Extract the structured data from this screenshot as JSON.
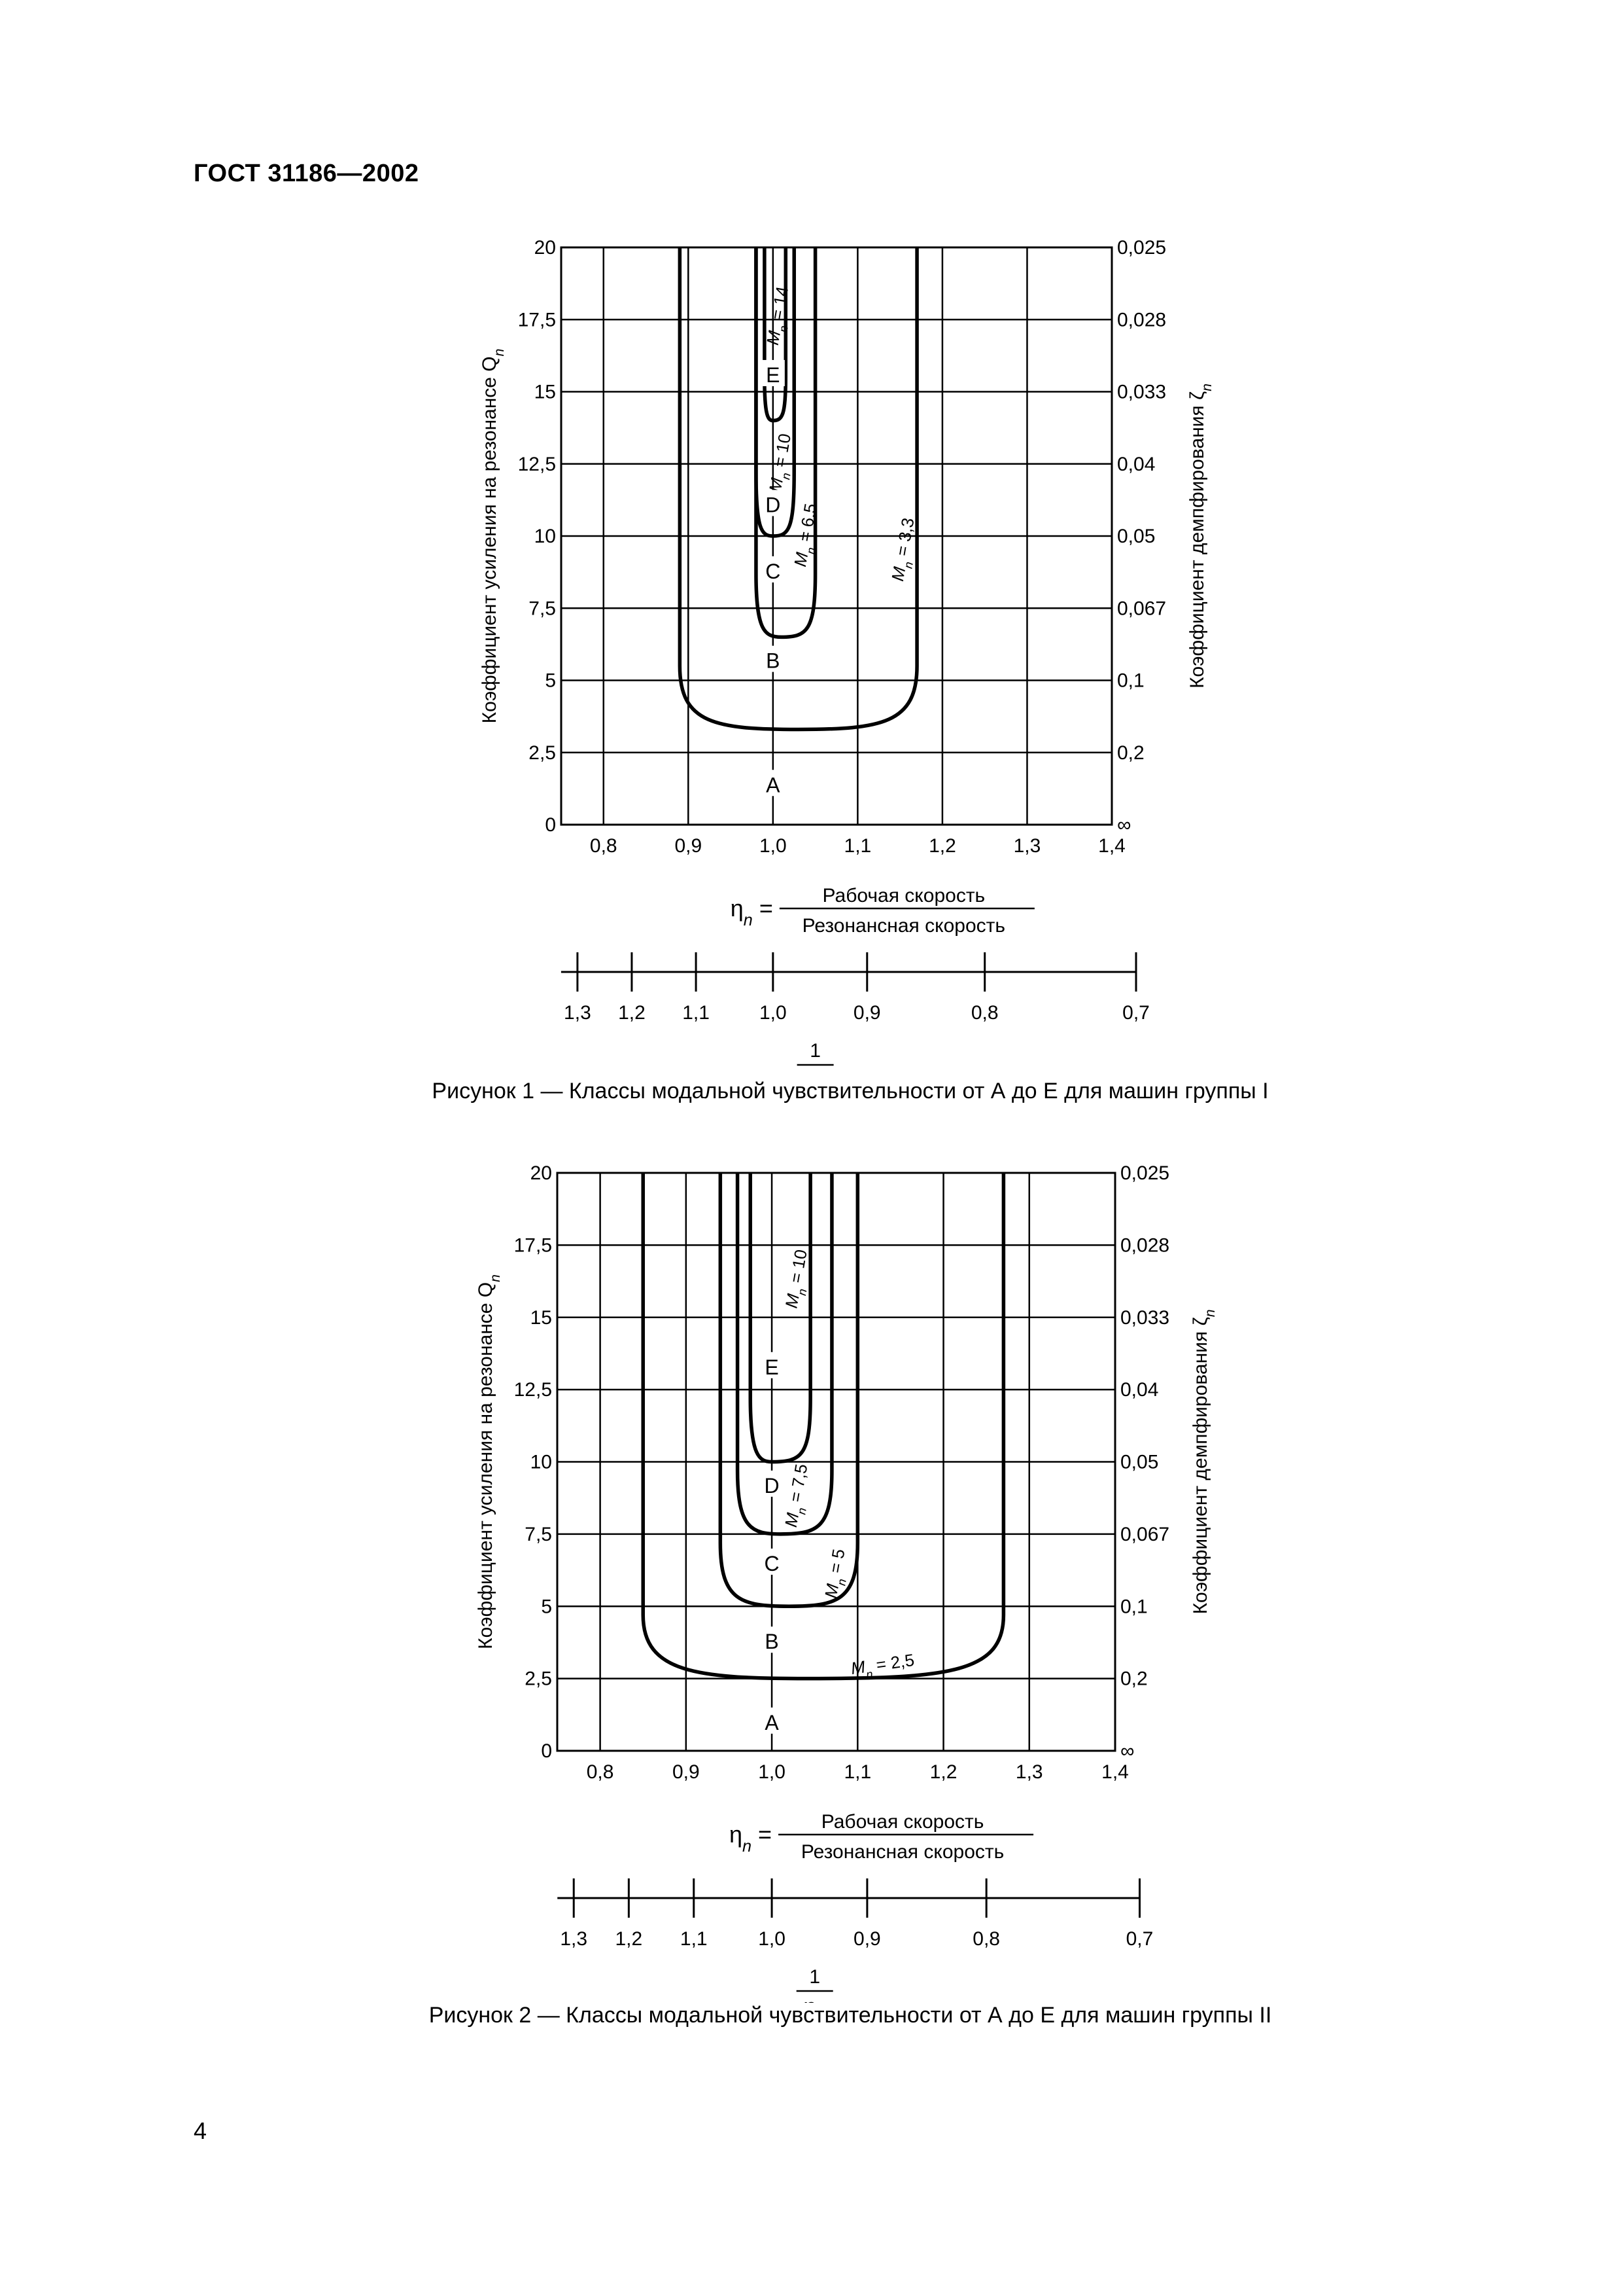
{
  "page": {
    "header": "ГОСТ 31186—2002",
    "page_number": "4"
  },
  "chart_data": [
    {
      "type": "line",
      "caption": "Рисунок 1 — Классы модальной чувствительности от А до Е для машин группы I",
      "ylabel": "Коэффициент усиления на резонансе Q",
      "ylabel_sub": "n",
      "y2label": "Коэффициент демпфирования ζ",
      "y2label_sub": "n",
      "xlim": [
        0.75,
        1.4
      ],
      "ylim": [
        0,
        20
      ],
      "grid": true,
      "x_ticks": [
        0.8,
        0.9,
        1.0,
        1.1,
        1.2,
        1.3,
        1.4
      ],
      "x_tick_labels": [
        "0,8",
        "0,9",
        "1,0",
        "1,1",
        "1,2",
        "1,3",
        "1,4"
      ],
      "y_ticks": [
        0,
        2.5,
        5,
        7.5,
        10,
        12.5,
        15,
        17.5,
        20
      ],
      "y_tick_labels": [
        "0",
        "2,5",
        "5",
        "7,5",
        "10",
        "12,5",
        "15",
        "17,5",
        "20"
      ],
      "y2_tick_labels": [
        "∞",
        "0,2",
        "0,1",
        "0,067",
        "0,05",
        "0,04",
        "0,033",
        "0,028",
        "0,025"
      ],
      "x_formula": {
        "symbol": "η",
        "sub": "n",
        "numerator": "Рабочая скорость",
        "denominator": "Резонансная скорость"
      },
      "reciprocal_axis": {
        "tick_labels": [
          "1,3",
          "1,2",
          "1,1",
          "1,0",
          "0,9",
          "0,8",
          "0,7"
        ],
        "tick_values": [
          1.3,
          1.2,
          1.1,
          1.0,
          0.9,
          0.8,
          0.7
        ],
        "label_numerator": "1",
        "label_symbol": "η",
        "label_sub": "n"
      },
      "zones": [
        {
          "label": "A",
          "y": 1.4
        },
        {
          "label": "B",
          "y": 5.7
        },
        {
          "label": "C",
          "y": 8.8
        },
        {
          "label": "D",
          "y": 11.1
        },
        {
          "label": "E",
          "y": 15.6
        }
      ],
      "series": [
        {
          "name": "M = 3,3",
          "text": "M",
          "sub": "n",
          "eq": " = 3,3",
          "min_q": 3.3,
          "bottom_x": 1.03,
          "left_x": 0.89,
          "right_x": 1.17,
          "label_x": 1.16,
          "label_y": 9.5
        },
        {
          "name": "M = 6,5",
          "text": "M",
          "sub": "n",
          "eq": " = 6,5",
          "min_q": 6.5,
          "bottom_x": 1.01,
          "left_x": 0.98,
          "right_x": 1.05,
          "label_x": 1.045,
          "label_y": 10
        },
        {
          "name": "M = 10",
          "text": "M",
          "sub": "n",
          "eq": " = 10",
          "min_q": 10,
          "bottom_x": 1.0,
          "left_x": 0.98,
          "right_x": 1.025,
          "label_x": 1.015,
          "label_y": 12.5
        },
        {
          "name": "M = 14",
          "text": "M",
          "sub": "n",
          "eq": " = 14",
          "min_q": 14,
          "bottom_x": 1.0,
          "left_x": 0.99,
          "right_x": 1.015,
          "label_x": 1.012,
          "label_y": 17.6
        }
      ]
    },
    {
      "type": "line",
      "caption": "Рисунок 2 — Классы модальной чувствительности от А до Е для машин группы II",
      "ylabel": "Коэффициент усиления на резонансе Q",
      "ylabel_sub": "n",
      "y2label": "Коэффициент демпфирования ζ",
      "y2label_sub": "n",
      "xlim": [
        0.75,
        1.4
      ],
      "ylim": [
        0,
        20
      ],
      "grid": true,
      "x_ticks": [
        0.8,
        0.9,
        1.0,
        1.1,
        1.2,
        1.3,
        1.4
      ],
      "x_tick_labels": [
        "0,8",
        "0,9",
        "1,0",
        "1,1",
        "1,2",
        "1,3",
        "1,4"
      ],
      "y_ticks": [
        0,
        2.5,
        5,
        7.5,
        10,
        12.5,
        15,
        17.5,
        20
      ],
      "y_tick_labels": [
        "0",
        "2,5",
        "5",
        "7,5",
        "10",
        "12,5",
        "15",
        "17,5",
        "20"
      ],
      "y2_tick_labels": [
        "∞",
        "0,2",
        "0,1",
        "0,067",
        "0,05",
        "0,04",
        "0,033",
        "0,028",
        "0,025"
      ],
      "x_formula": {
        "symbol": "η",
        "sub": "n",
        "numerator": "Рабочая скорость",
        "denominator": "Резонансная скорость"
      },
      "reciprocal_axis": {
        "tick_labels": [
          "1,3",
          "1,2",
          "1,1",
          "1,0",
          "0,9",
          "0,8",
          "0,7"
        ],
        "tick_values": [
          1.3,
          1.2,
          1.1,
          1.0,
          0.9,
          0.8,
          0.7
        ],
        "label_numerator": "1",
        "label_symbol": "η",
        "label_sub": "n"
      },
      "zones": [
        {
          "label": "A",
          "y": 1.0
        },
        {
          "label": "B",
          "y": 3.8
        },
        {
          "label": "C",
          "y": 6.5
        },
        {
          "label": "D",
          "y": 9.2
        },
        {
          "label": "E",
          "y": 13.3
        }
      ],
      "series": [
        {
          "name": "M = 2,5",
          "text": "M",
          "sub": "n",
          "eq": " = 2,5",
          "min_q": 2.5,
          "bottom_x": 1.04,
          "left_x": 0.85,
          "right_x": 1.27,
          "label_x": 1.13,
          "label_y": 2.8
        },
        {
          "name": "M = 5",
          "text": "M",
          "sub": "n",
          "eq": " = 5",
          "min_q": 5,
          "bottom_x": 1.02,
          "left_x": 0.94,
          "right_x": 1.1,
          "label_x": 1.08,
          "label_y": 6.1
        },
        {
          "name": "M = 7,5",
          "text": "M",
          "sub": "n",
          "eq": " = 7,5",
          "min_q": 7.5,
          "bottom_x": 1.01,
          "left_x": 0.96,
          "right_x": 1.07,
          "label_x": 1.035,
          "label_y": 8.8
        },
        {
          "name": "M = 10",
          "text": "M",
          "sub": "n",
          "eq": " = 10",
          "min_q": 10,
          "bottom_x": 1.0,
          "left_x": 0.975,
          "right_x": 1.045,
          "label_x": 1.035,
          "label_y": 16.3
        }
      ]
    }
  ]
}
